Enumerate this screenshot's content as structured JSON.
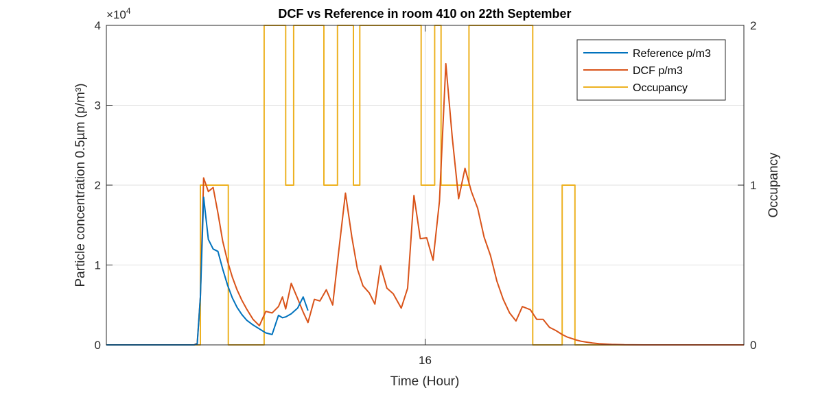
{
  "chart_data": {
    "type": "line",
    "title": "DCF vs Reference in room 410 on 22th September",
    "xlabel": "Time (Hour)",
    "ylabel_left": "Particle concentration 0.5µm (p/m³)",
    "ylabel_right": "Occupancy",
    "y_exponent_base": "×10",
    "y_exponent_power": "4",
    "x_ticks": [
      {
        "value": 16,
        "label": "16"
      }
    ],
    "xlim": [
      12,
      20
    ],
    "ylim_left": [
      0,
      40000
    ],
    "ylim_right": [
      0,
      2
    ],
    "y_ticks_left": [
      {
        "value": 0,
        "label": "0"
      },
      {
        "value": 10000,
        "label": "1"
      },
      {
        "value": 20000,
        "label": "2"
      },
      {
        "value": 30000,
        "label": "3"
      },
      {
        "value": 40000,
        "label": "4"
      }
    ],
    "y_ticks_right": [
      {
        "value": 0,
        "label": "0"
      },
      {
        "value": 1,
        "label": "1"
      },
      {
        "value": 2,
        "label": "2"
      }
    ],
    "grid": true,
    "legend_position": "top-right",
    "series": [
      {
        "name": "Reference p/m3",
        "axis": "left",
        "color": "#0072BD",
        "x": [
          12.0,
          13.1,
          13.14,
          13.18,
          13.22,
          13.28,
          13.34,
          13.4,
          13.46,
          13.52,
          13.58,
          13.64,
          13.7,
          13.76,
          13.84,
          13.92,
          14.0,
          14.08,
          14.16,
          14.21,
          14.25,
          14.32,
          14.4,
          14.47,
          14.53
        ],
        "y": [
          0,
          0,
          100,
          6000,
          18500,
          13200,
          12000,
          11700,
          9500,
          7500,
          5900,
          4700,
          3800,
          3100,
          2500,
          2000,
          1500,
          1300,
          3700,
          3400,
          3500,
          3900,
          4600,
          6000,
          4300
        ]
      },
      {
        "name": "DCF p/m3",
        "axis": "left",
        "color": "#D95319",
        "x": [
          12.0,
          13.1,
          13.14,
          13.18,
          13.22,
          13.28,
          13.34,
          13.4,
          13.46,
          13.52,
          13.58,
          13.64,
          13.7,
          13.76,
          13.84,
          13.92,
          14.0,
          14.08,
          14.16,
          14.21,
          14.25,
          14.32,
          14.4,
          14.47,
          14.53,
          14.61,
          14.68,
          14.76,
          14.84,
          14.92,
          15.0,
          15.08,
          15.15,
          15.22,
          15.3,
          15.37,
          15.44,
          15.52,
          15.6,
          15.7,
          15.78,
          15.86,
          15.94,
          16.02,
          16.1,
          16.18,
          16.26,
          16.34,
          16.42,
          16.5,
          16.58,
          16.66,
          16.74,
          16.82,
          16.9,
          16.98,
          17.06,
          17.14,
          17.22,
          17.32,
          17.4,
          17.48,
          17.56,
          17.64,
          17.72,
          17.78,
          17.84,
          17.9,
          17.96,
          18.02,
          18.1,
          18.18,
          18.26,
          18.34,
          18.42,
          18.5,
          18.6,
          18.75,
          18.9,
          19.1,
          19.4,
          19.7,
          20.0
        ],
        "y": [
          0,
          0,
          200,
          6000,
          20900,
          19200,
          19700,
          16500,
          13000,
          10500,
          8500,
          6900,
          5600,
          4500,
          3200,
          2400,
          4200,
          4000,
          4800,
          6000,
          4500,
          7700,
          5800,
          4100,
          2800,
          5700,
          5500,
          6900,
          5000,
          12100,
          19000,
          13500,
          9500,
          7400,
          6500,
          5100,
          9900,
          7100,
          6400,
          4600,
          7100,
          18700,
          13300,
          13400,
          10600,
          18000,
          35200,
          26000,
          18300,
          22100,
          19200,
          17100,
          13500,
          11200,
          8000,
          5700,
          4000,
          3000,
          4800,
          4400,
          3200,
          3200,
          2200,
          1800,
          1300,
          1000,
          800,
          600,
          450,
          350,
          230,
          150,
          100,
          60,
          40,
          20,
          10,
          0,
          0,
          0,
          0,
          0,
          0
        ]
      },
      {
        "name": "Occupancy",
        "axis": "right",
        "color": "#EDB120",
        "x": [
          12.0,
          13.18,
          13.18,
          13.53,
          13.53,
          13.98,
          13.98,
          14.25,
          14.25,
          14.35,
          14.35,
          14.73,
          14.73,
          14.9,
          14.9,
          15.1,
          15.1,
          15.18,
          15.18,
          15.95,
          15.95,
          16.12,
          16.12,
          16.2,
          16.2,
          16.55,
          16.55,
          17.35,
          17.35,
          17.72,
          17.72,
          17.88,
          17.88,
          20.0
        ],
        "y": [
          0,
          0,
          1,
          1,
          0,
          0,
          2,
          2,
          1,
          1,
          2,
          2,
          1,
          1,
          2,
          2,
          1,
          1,
          2,
          2,
          1,
          1,
          2,
          2,
          1,
          1,
          2,
          2,
          0,
          0,
          1,
          1,
          0,
          0
        ]
      }
    ]
  }
}
